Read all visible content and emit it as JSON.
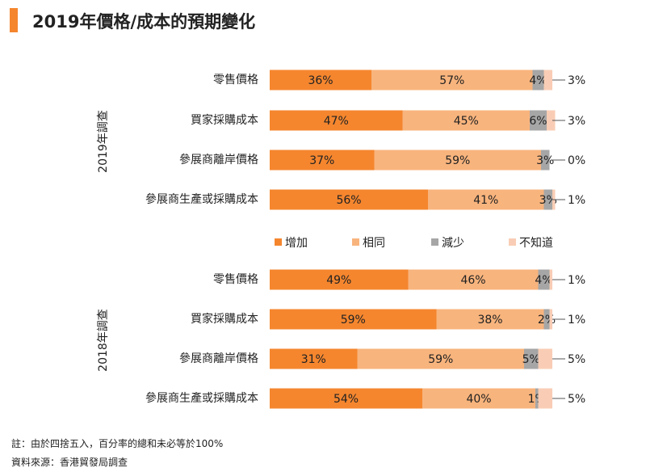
{
  "title": "2019年價格/成本的預期變化",
  "colors": {
    "accent": "#F5862E",
    "increase": "#F5862E",
    "same": "#F8B47D",
    "decrease": "#A6A6A6",
    "unknown": "#F9CDB5"
  },
  "chart_data": {
    "type": "bar",
    "orientation": "horizontal",
    "stacked": true,
    "percent": true,
    "xlim": [
      0,
      100
    ],
    "legend": {
      "placement": "between groups",
      "entries": [
        "增加",
        "相同",
        "減少",
        "不知道"
      ]
    },
    "groups": [
      {
        "name": "2019年調查",
        "categories": [
          "零售價格",
          "買家採購成本",
          "參展商離岸價格",
          "參展商生產或採購成本"
        ],
        "series": [
          {
            "name": "增加",
            "values": [
              36,
              47,
              37,
              56
            ],
            "labels": [
              "36%",
              "47%",
              "37%",
              "56%"
            ]
          },
          {
            "name": "相同",
            "values": [
              57,
              45,
              59,
              41
            ],
            "labels": [
              "57%",
              "45%",
              "59%",
              "41%"
            ]
          },
          {
            "name": "減少",
            "values": [
              4,
              6,
              3,
              3
            ],
            "labels": [
              "4%",
              "6%",
              "3%",
              "3%"
            ]
          },
          {
            "name": "不知道",
            "values": [
              3,
              3,
              0,
              1
            ],
            "labels": [
              "3%",
              "3%",
              "0%",
              "1%"
            ]
          }
        ]
      },
      {
        "name": "2018年調查",
        "categories": [
          "零售價格",
          "買家採購成本",
          "參展商離岸價格",
          "參展商生產或採購成本"
        ],
        "series": [
          {
            "name": "增加",
            "values": [
              49,
              59,
              31,
              54
            ],
            "labels": [
              "49%",
              "59%",
              "31%",
              "54%"
            ]
          },
          {
            "name": "相同",
            "values": [
              46,
              38,
              59,
              40
            ],
            "labels": [
              "46%",
              "38%",
              "59%",
              "40%"
            ]
          },
          {
            "name": "減少",
            "values": [
              4,
              2,
              5,
              1
            ],
            "labels": [
              "4%",
              "2%",
              "5%",
              "1%"
            ]
          },
          {
            "name": "不知道",
            "values": [
              1,
              1,
              5,
              5
            ],
            "labels": [
              "1%",
              "1%",
              "5%",
              "5%"
            ]
          }
        ]
      }
    ]
  },
  "notes": {
    "note1": "註：由於四捨五入，百分率的總和未必等於100%",
    "note2": "資料來源：香港貿發局調查"
  }
}
